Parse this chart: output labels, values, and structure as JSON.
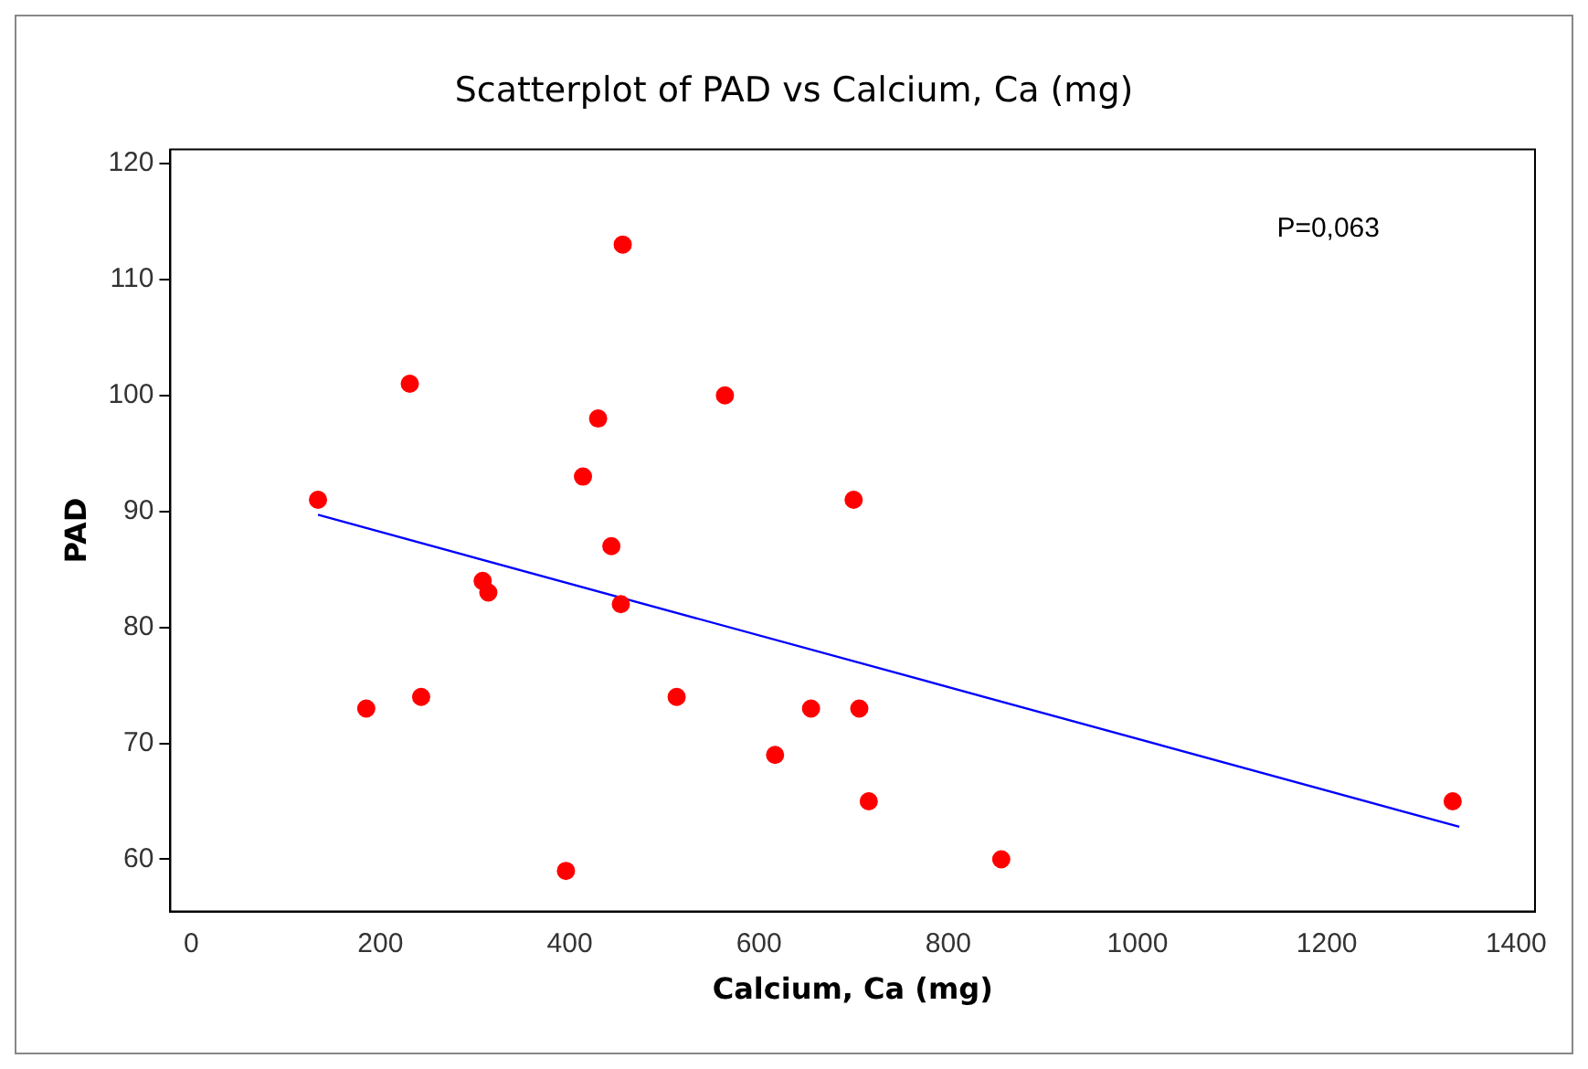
{
  "chart_data": {
    "type": "scatter",
    "title": "Scatterplot of PAD vs Calcium, Ca (mg)",
    "xlabel": "Calcium, Ca (mg)",
    "ylabel": "PAD",
    "xlim": [
      -22,
      1420
    ],
    "ylim": [
      55.5,
      121.2
    ],
    "xticks": [
      0,
      200,
      400,
      600,
      800,
      1000,
      1200,
      1400
    ],
    "yticks": [
      60,
      70,
      80,
      90,
      100,
      110,
      120
    ],
    "grid": false,
    "legend": false,
    "marker": "circle",
    "annotations": [
      "P=0,063"
    ],
    "series": [
      {
        "color": "#ff0000",
        "x": [
          134,
          231,
          185,
          243,
          308,
          314,
          396,
          414,
          430,
          444,
          454,
          456,
          513,
          564,
          617,
          655,
          700,
          706,
          716,
          856,
          1333
        ],
        "values": [
          91,
          101,
          73,
          74,
          84,
          83,
          59,
          93,
          98,
          87,
          82,
          113,
          74,
          100,
          69,
          73,
          91,
          73,
          65,
          60,
          65
        ]
      },
      {
        "type": "line",
        "color": "#0000ff",
        "marker": "none",
        "line_style": "solid",
        "x": [
          134,
          1340
        ],
        "values": [
          89.7,
          62.8
        ]
      }
    ]
  }
}
